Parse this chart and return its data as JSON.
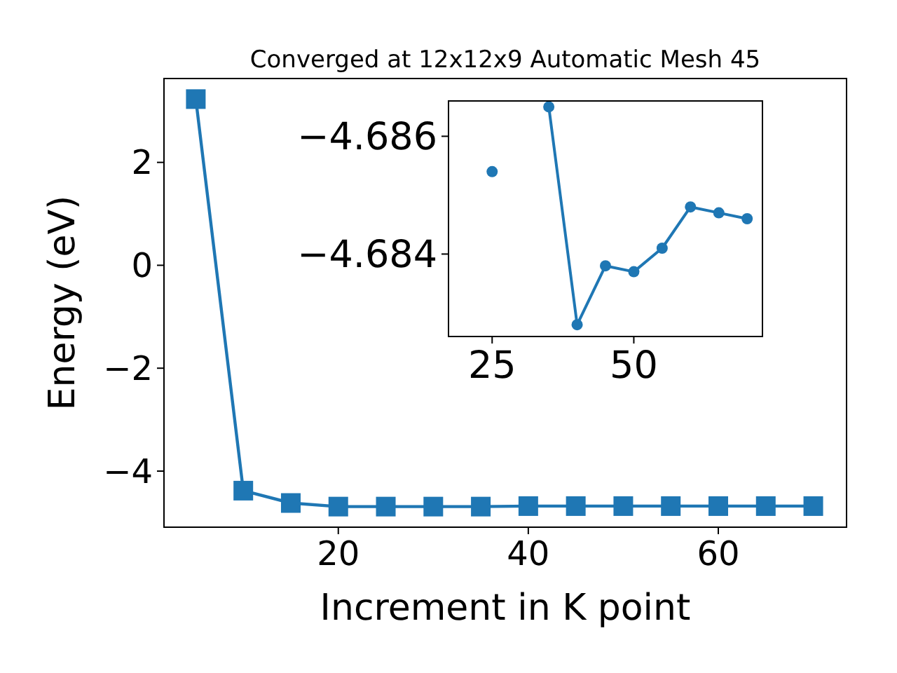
{
  "chart_data": [
    {
      "type": "line",
      "title": "Converged at 12x12x9 Automatic Mesh 45",
      "xlabel": "Increment in K point",
      "ylabel": "Energy (eV)",
      "x": [
        5,
        10,
        15,
        20,
        25,
        30,
        35,
        40,
        45,
        50,
        55,
        60,
        65,
        70
      ],
      "xlim": [
        1.65,
        73.5
      ],
      "ylim": [
        -5.09,
        3.63
      ],
      "xticks": [
        20,
        40,
        60
      ],
      "yticks": [
        {
          "value": -4,
          "label": "−4"
        },
        {
          "value": -2,
          "label": "−2"
        },
        0,
        2
      ],
      "marker": "square",
      "grid": false,
      "series": [
        {
          "color": "#1f77b4",
          "values": [
            3.23,
            -4.38,
            -4.62,
            -4.69,
            -4.69,
            -4.69,
            -4.69,
            -4.68,
            -4.68,
            -4.68,
            -4.68,
            -4.68,
            -4.68,
            -4.68
          ]
        }
      ]
    },
    {
      "type": "line",
      "x": [
        25,
        30,
        35,
        40,
        45,
        50,
        55,
        60,
        65,
        70
      ],
      "xlim": [
        17.3,
        72.7
      ],
      "ylim": [
        -4.6826,
        -4.6866
      ],
      "xticks": [
        25,
        50
      ],
      "yticks": [
        {
          "value": -4.686,
          "label": "−4.686"
        },
        {
          "value": -4.684,
          "label": "−4.684"
        }
      ],
      "marker": "circle",
      "grid": false,
      "series": [
        {
          "color": "#1f77b4",
          "values": [
            -4.6854,
            null,
            -4.6865,
            -4.6828,
            -4.6838,
            -4.6837,
            -4.6841,
            -4.6848,
            -4.6847,
            -4.6846
          ]
        }
      ]
    }
  ]
}
